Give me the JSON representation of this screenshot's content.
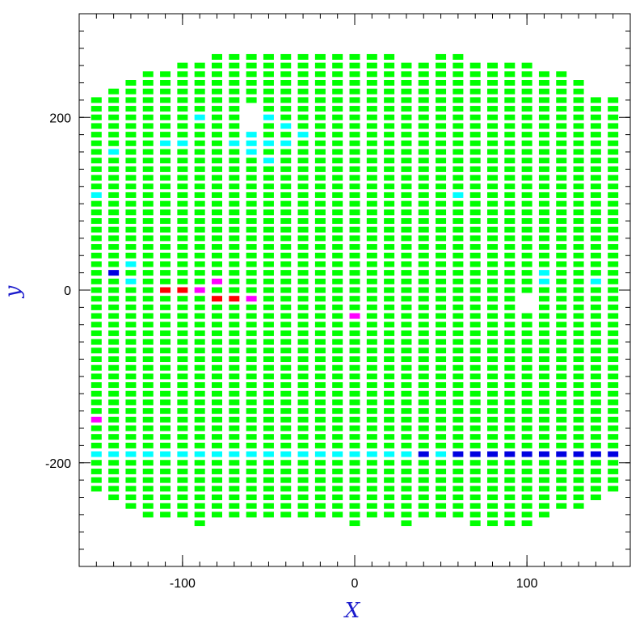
{
  "chart_data": {
    "type": "scatter",
    "marker": "rectangle",
    "xlabel": "X",
    "ylabel": "y",
    "xlim": [
      -160,
      160
    ],
    "ylim": [
      -320,
      320
    ],
    "grid": false,
    "x_ticks": [
      -100,
      0,
      100
    ],
    "y_ticks": [
      -200,
      0,
      200
    ],
    "x_minor_step": 10,
    "y_minor_step": 20,
    "colors": {
      "axis_title": "#1a1acc",
      "frame": "#000000",
      "green": "#00ff00",
      "cyan": "#00ffff",
      "blue": "#0000e0",
      "red": "#ff0000",
      "magenta": "#ff00ff"
    },
    "columns": [
      {
        "x": -150,
        "ymin": -230,
        "ymax": 220,
        "missing": []
      },
      {
        "x": -140,
        "ymin": -240,
        "ymax": 230,
        "missing": []
      },
      {
        "x": -130,
        "ymin": -250,
        "ymax": 240,
        "missing": []
      },
      {
        "x": -120,
        "ymin": -260,
        "ymax": 250,
        "missing": []
      },
      {
        "x": -110,
        "ymin": -260,
        "ymax": 250,
        "missing": []
      },
      {
        "x": -100,
        "ymin": -260,
        "ymax": 260,
        "missing": []
      },
      {
        "x": -90,
        "ymin": -270,
        "ymax": 260,
        "missing": []
      },
      {
        "x": -80,
        "ymin": -260,
        "ymax": 270,
        "missing": []
      },
      {
        "x": -70,
        "ymin": -260,
        "ymax": 270,
        "missing": []
      },
      {
        "x": -60,
        "ymin": -260,
        "ymax": 270,
        "missing": [
          210,
          200,
          190
        ]
      },
      {
        "x": -50,
        "ymin": -260,
        "ymax": 270,
        "missing": []
      },
      {
        "x": -40,
        "ymin": -260,
        "ymax": 270,
        "missing": []
      },
      {
        "x": -30,
        "ymin": -260,
        "ymax": 270,
        "missing": []
      },
      {
        "x": -20,
        "ymin": -260,
        "ymax": 270,
        "missing": []
      },
      {
        "x": -10,
        "ymin": -260,
        "ymax": 270,
        "missing": []
      },
      {
        "x": 0,
        "ymin": -270,
        "ymax": 270,
        "missing": []
      },
      {
        "x": 10,
        "ymin": -260,
        "ymax": 270,
        "missing": []
      },
      {
        "x": 20,
        "ymin": -260,
        "ymax": 270,
        "missing": []
      },
      {
        "x": 30,
        "ymin": -270,
        "ymax": 260,
        "missing": []
      },
      {
        "x": 40,
        "ymin": -260,
        "ymax": 260,
        "missing": []
      },
      {
        "x": 50,
        "ymin": -260,
        "ymax": 270,
        "missing": []
      },
      {
        "x": 60,
        "ymin": -260,
        "ymax": 270,
        "missing": []
      },
      {
        "x": 70,
        "ymin": -270,
        "ymax": 260,
        "missing": []
      },
      {
        "x": 80,
        "ymin": -270,
        "ymax": 260,
        "missing": []
      },
      {
        "x": 90,
        "ymin": -270,
        "ymax": 260,
        "missing": []
      },
      {
        "x": 100,
        "ymin": -270,
        "ymax": 260,
        "missing": [
          -10,
          -20
        ]
      },
      {
        "x": 110,
        "ymin": -260,
        "ymax": 250,
        "missing": []
      },
      {
        "x": 120,
        "ymin": -250,
        "ymax": 250,
        "missing": []
      },
      {
        "x": 130,
        "ymin": -250,
        "ymax": 240,
        "missing": []
      },
      {
        "x": 140,
        "ymin": -240,
        "ymax": 220,
        "missing": [
          230
        ]
      },
      {
        "x": 150,
        "ymin": -230,
        "ymax": 220,
        "missing": []
      }
    ],
    "highlighted": [
      {
        "x": -150,
        "y": 110,
        "color": "cyan"
      },
      {
        "x": -140,
        "y": 160,
        "color": "cyan"
      },
      {
        "x": -130,
        "y": 30,
        "color": "cyan"
      },
      {
        "x": -130,
        "y": 10,
        "color": "cyan"
      },
      {
        "x": -110,
        "y": 170,
        "color": "cyan"
      },
      {
        "x": -100,
        "y": 170,
        "color": "cyan"
      },
      {
        "x": -90,
        "y": 200,
        "color": "cyan"
      },
      {
        "x": -70,
        "y": 170,
        "color": "cyan"
      },
      {
        "x": -60,
        "y": 180,
        "color": "cyan"
      },
      {
        "x": -60,
        "y": 170,
        "color": "cyan"
      },
      {
        "x": -60,
        "y": 160,
        "color": "cyan"
      },
      {
        "x": -50,
        "y": 200,
        "color": "cyan"
      },
      {
        "x": -50,
        "y": 170,
        "color": "cyan"
      },
      {
        "x": -50,
        "y": 150,
        "color": "cyan"
      },
      {
        "x": -40,
        "y": 190,
        "color": "cyan"
      },
      {
        "x": -40,
        "y": 170,
        "color": "cyan"
      },
      {
        "x": -30,
        "y": 180,
        "color": "cyan"
      },
      {
        "x": 60,
        "y": 110,
        "color": "cyan"
      },
      {
        "x": 110,
        "y": 20,
        "color": "cyan"
      },
      {
        "x": 110,
        "y": 10,
        "color": "cyan"
      },
      {
        "x": 140,
        "y": 10,
        "color": "cyan"
      },
      {
        "x": -140,
        "y": 20,
        "color": "blue"
      },
      {
        "x": -110,
        "y": 0,
        "color": "red"
      },
      {
        "x": -100,
        "y": 0,
        "color": "red"
      },
      {
        "x": -80,
        "y": -10,
        "color": "red"
      },
      {
        "x": -70,
        "y": -10,
        "color": "red"
      },
      {
        "x": -90,
        "y": 0,
        "color": "magenta"
      },
      {
        "x": -80,
        "y": 10,
        "color": "magenta"
      },
      {
        "x": -60,
        "y": -10,
        "color": "magenta"
      },
      {
        "x": 0,
        "y": -30,
        "color": "magenta"
      },
      {
        "x": -150,
        "y": -150,
        "color": "magenta"
      }
    ],
    "row_overrides": [
      {
        "y": -190,
        "x_from": -150,
        "x_to": 30,
        "color": "cyan"
      },
      {
        "y": -190,
        "x_from": 40,
        "x_to": 40,
        "color": "blue"
      },
      {
        "y": -190,
        "x_from": 50,
        "x_to": 50,
        "color": "cyan"
      },
      {
        "y": -190,
        "x_from": 60,
        "x_to": 150,
        "color": "blue"
      }
    ]
  }
}
